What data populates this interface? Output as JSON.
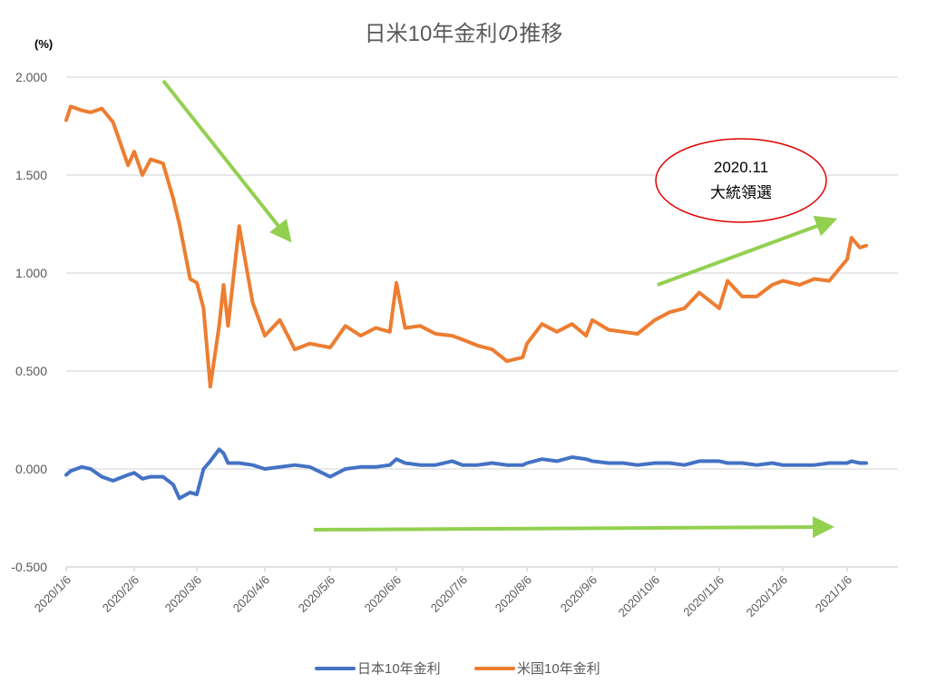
{
  "chart_data": {
    "type": "line",
    "title": "日米10年金利の推移",
    "ylabel": "(%)",
    "xlabel": "",
    "ylim": [
      -0.5,
      2.0
    ],
    "yticks": [
      "2.000",
      "1.500",
      "1.000",
      "0.500",
      "0.000",
      "-0.500"
    ],
    "ytick_values": [
      2.0,
      1.5,
      1.0,
      0.5,
      0.0,
      -0.5
    ],
    "xticks": [
      "2020/1/6",
      "2020/2/6",
      "2020/3/6",
      "2020/4/6",
      "2020/5/6",
      "2020/6/6",
      "2020/7/6",
      "2020/8/6",
      "2020/9/6",
      "2020/10/6",
      "2020/11/6",
      "2020/12/6",
      "2021/1/6"
    ],
    "grid": true,
    "legend_position": "bottom",
    "x": [
      "2020/1/6",
      "2020/1/8",
      "2020/1/13",
      "2020/1/17",
      "2020/1/22",
      "2020/1/27",
      "2020/2/3",
      "2020/2/6",
      "2020/2/10",
      "2020/2/14",
      "2020/2/20",
      "2020/2/25",
      "2020/2/28",
      "2020/3/3",
      "2020/3/6",
      "2020/3/9",
      "2020/3/12",
      "2020/3/16",
      "2020/3/18",
      "2020/3/20",
      "2020/3/25",
      "2020/3/31",
      "2020/4/6",
      "2020/4/13",
      "2020/4/20",
      "2020/4/27",
      "2020/5/6",
      "2020/5/13",
      "2020/5/20",
      "2020/5/27",
      "2020/6/3",
      "2020/6/6",
      "2020/6/10",
      "2020/6/17",
      "2020/6/24",
      "2020/7/1",
      "2020/7/6",
      "2020/7/13",
      "2020/7/20",
      "2020/7/27",
      "2020/8/4",
      "2020/8/6",
      "2020/8/13",
      "2020/8/20",
      "2020/8/27",
      "2020/9/3",
      "2020/9/6",
      "2020/9/14",
      "2020/9/21",
      "2020/9/28",
      "2020/10/6",
      "2020/10/13",
      "2020/10/20",
      "2020/10/27",
      "2020/11/6",
      "2020/11/10",
      "2020/11/17",
      "2020/11/24",
      "2020/12/1",
      "2020/12/6",
      "2020/12/14",
      "2020/12/21",
      "2020/12/28",
      "2021/1/6",
      "2021/1/8",
      "2021/1/12",
      "2021/1/15"
    ],
    "series": [
      {
        "name": "日本10年金利",
        "color": "#4472C4",
        "values": [
          -0.03,
          -0.01,
          0.01,
          0.0,
          -0.04,
          -0.06,
          -0.03,
          -0.02,
          -0.05,
          -0.04,
          -0.04,
          -0.08,
          -0.15,
          -0.12,
          -0.13,
          0.0,
          0.04,
          0.1,
          0.08,
          0.03,
          0.03,
          0.02,
          0.0,
          0.01,
          0.02,
          0.01,
          -0.04,
          0.0,
          0.01,
          0.01,
          0.02,
          0.05,
          0.03,
          0.02,
          0.02,
          0.04,
          0.02,
          0.02,
          0.03,
          0.02,
          0.02,
          0.03,
          0.05,
          0.04,
          0.06,
          0.05,
          0.04,
          0.03,
          0.03,
          0.02,
          0.03,
          0.03,
          0.02,
          0.04,
          0.04,
          0.03,
          0.03,
          0.02,
          0.03,
          0.02,
          0.02,
          0.02,
          0.03,
          0.03,
          0.04,
          0.03,
          0.03
        ]
      },
      {
        "name": "米国10年金利",
        "color": "#ED7D31",
        "values": [
          1.78,
          1.85,
          1.83,
          1.82,
          1.84,
          1.77,
          1.55,
          1.62,
          1.5,
          1.58,
          1.56,
          1.38,
          1.25,
          0.97,
          0.95,
          0.82,
          0.42,
          0.73,
          0.94,
          0.73,
          1.24,
          0.85,
          0.68,
          0.76,
          0.61,
          0.64,
          0.62,
          0.73,
          0.68,
          0.72,
          0.7,
          0.95,
          0.72,
          0.73,
          0.69,
          0.68,
          0.66,
          0.63,
          0.61,
          0.55,
          0.57,
          0.64,
          0.74,
          0.7,
          0.74,
          0.68,
          0.76,
          0.71,
          0.7,
          0.69,
          0.76,
          0.8,
          0.82,
          0.9,
          0.82,
          0.96,
          0.88,
          0.88,
          0.94,
          0.96,
          0.94,
          0.97,
          0.96,
          1.07,
          1.18,
          1.13,
          1.14
        ]
      }
    ],
    "annotations": [
      {
        "type": "ellipse",
        "text_line1": "2020.11",
        "text_line2": "大統領選",
        "color": "#E00000"
      },
      {
        "type": "arrow",
        "direction": "down-right",
        "color": "#92D050"
      },
      {
        "type": "arrow",
        "direction": "up-right",
        "color": "#92D050"
      },
      {
        "type": "arrow",
        "direction": "right",
        "color": "#92D050"
      }
    ]
  },
  "colors": {
    "grid": "#D9D9D9",
    "arrow": "#92D050",
    "ellipse": "#E00000",
    "japan": "#4472C4",
    "us": "#ED7D31"
  }
}
